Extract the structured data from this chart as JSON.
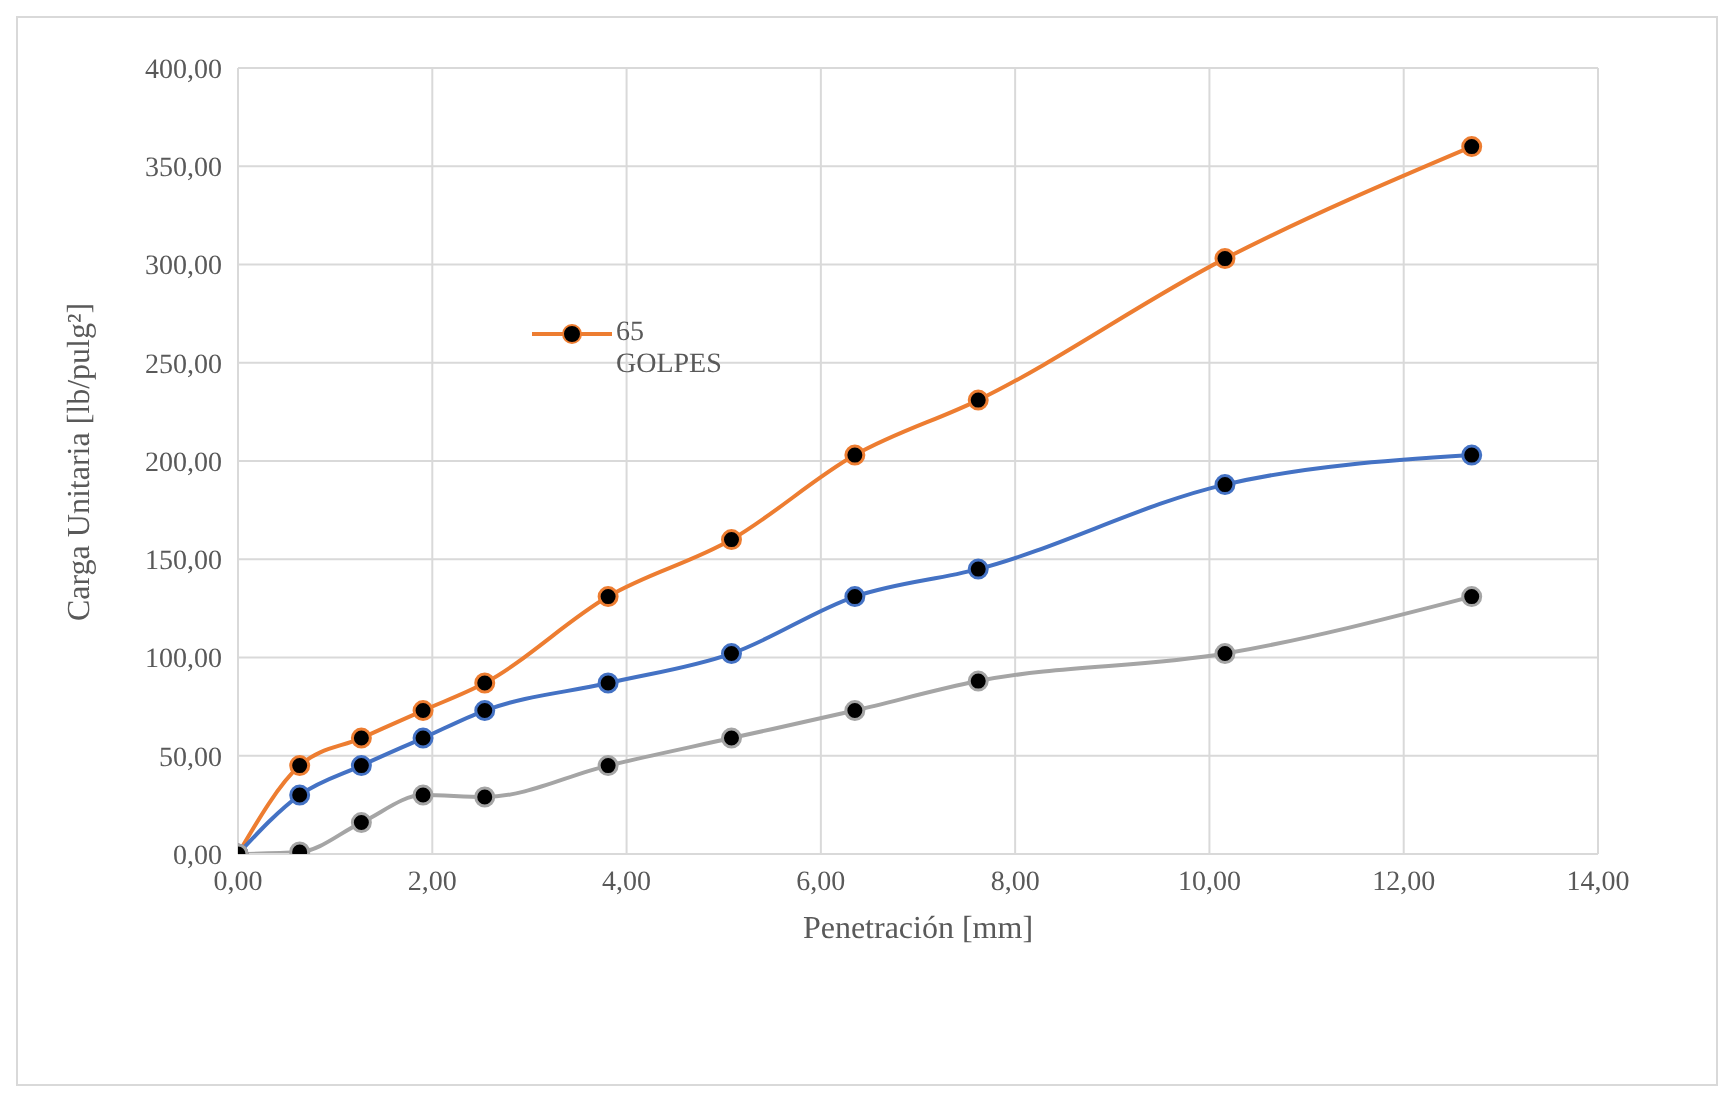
{
  "chart_data": {
    "type": "line",
    "xlabel": "Penetración [mm]",
    "ylabel": "Carga Unitaria [lb/pulg²]",
    "x": [
      0,
      0.635,
      1.27,
      1.905,
      2.54,
      3.81,
      5.08,
      6.35,
      7.62,
      10.16,
      12.7
    ],
    "series": [
      {
        "name": "65 GOLPES",
        "color": "#ed7d31",
        "values": [
          0,
          45,
          59,
          73,
          87,
          131,
          160,
          203,
          231,
          303,
          360
        ]
      },
      {
        "color": "#4472c4",
        "values": [
          0,
          30,
          45,
          59,
          73,
          87,
          102,
          131,
          145,
          188,
          203
        ]
      },
      {
        "color": "#a5a5a5",
        "values": [
          0,
          1,
          16,
          30,
          29,
          45,
          59,
          73,
          88,
          102,
          131
        ]
      }
    ],
    "xlim": [
      0,
      14
    ],
    "xticks": [
      {
        "value": 0,
        "label": "0,00"
      },
      {
        "value": 2,
        "label": "2,00"
      },
      {
        "value": 4,
        "label": "4,00"
      },
      {
        "value": 6,
        "label": "6,00"
      },
      {
        "value": 8,
        "label": "8,00"
      },
      {
        "value": 10,
        "label": "10,00"
      },
      {
        "value": 12,
        "label": "12,00"
      },
      {
        "value": 14,
        "label": "14,00"
      }
    ],
    "ylim": [
      0,
      400
    ],
    "yticks": [
      {
        "value": 0,
        "label": "0,00"
      },
      {
        "value": 50,
        "label": "50,00"
      },
      {
        "value": 100,
        "label": "100,00"
      },
      {
        "value": 150,
        "label": "150,00"
      },
      {
        "value": 200,
        "label": "200,00"
      },
      {
        "value": 250,
        "label": "250,00"
      },
      {
        "value": 300,
        "label": "300,00"
      },
      {
        "value": 350,
        "label": "350,00"
      },
      {
        "value": 400,
        "label": "400,00"
      }
    ],
    "grid": true,
    "legend": "top left",
    "marker": "circle",
    "line_style": "solid"
  }
}
